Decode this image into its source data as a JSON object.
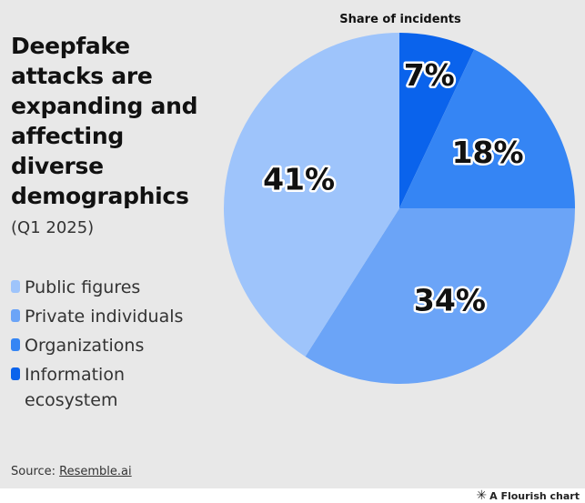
{
  "title": "Deepfake attacks are expanding and affecting diverse demographics",
  "subtitle": "(Q1 2025)",
  "chart_heading": "Share of incidents",
  "source": {
    "prefix": "Source: ",
    "link_text": "Resemble.ai"
  },
  "credit": {
    "icon": "flourish-logo-icon",
    "text": "A Flourish chart"
  },
  "colors": {
    "background": "#e8e8e8",
    "public_figures": "#9ec4fb",
    "private_individuals": "#6ba4f7",
    "organizations": "#3585f4",
    "information_ecosystem": "#0a63ec"
  },
  "chart_data": {
    "type": "pie",
    "title": "Share of incidents",
    "start_angle_deg": 0,
    "direction": "clockwise",
    "legend_position": "left",
    "slices": [
      {
        "label": "Information ecosystem",
        "value": 7,
        "display": "7%",
        "color": "#0a63ec"
      },
      {
        "label": "Organizations",
        "value": 18,
        "display": "18%",
        "color": "#3585f4"
      },
      {
        "label": "Private individuals",
        "value": 34,
        "display": "34%",
        "color": "#6ba4f7"
      },
      {
        "label": "Public figures",
        "value": 41,
        "display": "41%",
        "color": "#9ec4fb"
      }
    ]
  },
  "legend": [
    {
      "label": "Public figures",
      "color": "#9ec4fb"
    },
    {
      "label": "Private individuals",
      "color": "#6ba4f7"
    },
    {
      "label": "Organizations",
      "color": "#3585f4"
    },
    {
      "label": "Information ecosystem",
      "color": "#0a63ec"
    }
  ]
}
